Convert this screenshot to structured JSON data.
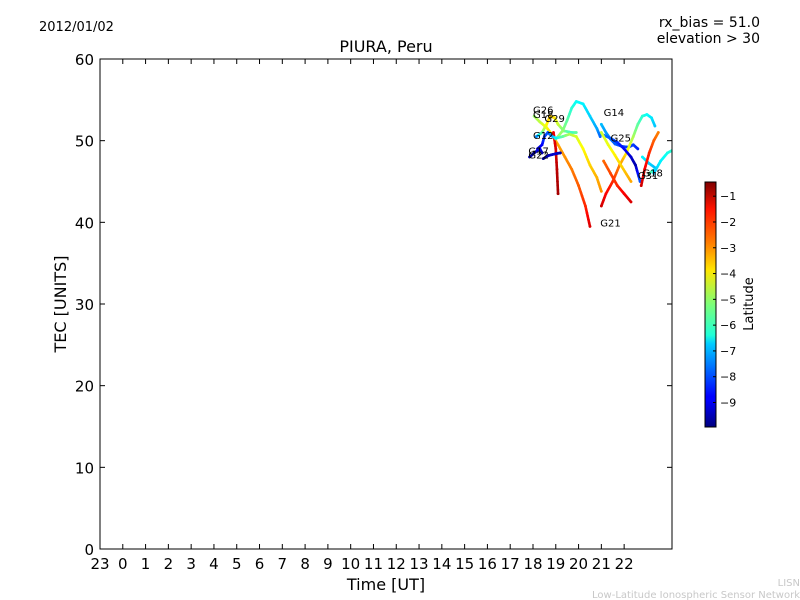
{
  "header": {
    "date": "2012/01/02",
    "bias": "rx_bias = 51.0",
    "elevation": "elevation > 30"
  },
  "footer": {
    "line1": "LISN",
    "line2": "Low-Latitude Ionospheric Sensor Network"
  },
  "colorbar": {
    "label": "Latitude",
    "ticks": [
      "−1",
      "−2",
      "−3",
      "−4",
      "−5",
      "−6",
      "−7",
      "−8",
      "−9"
    ],
    "tick_values": [
      -1,
      -2,
      -3,
      -4,
      -5,
      -6,
      -7,
      -8,
      -9
    ],
    "range": [
      -9.95,
      -0.45
    ],
    "colormap": "jet"
  },
  "chart_data": {
    "type": "scatter",
    "title": "PIURA, Peru",
    "xlabel": "Time [UT]",
    "ylabel": "TEC [UNITS]",
    "xlim": [
      -1,
      24.1
    ],
    "ylim": [
      0,
      60
    ],
    "x_ticks": [
      -1,
      0,
      1,
      2,
      3,
      4,
      5,
      6,
      7,
      8,
      9,
      10,
      11,
      12,
      13,
      14,
      15,
      16,
      17,
      18,
      19,
      20,
      21,
      22
    ],
    "x_tick_labels": [
      "23",
      "0",
      "1",
      "2",
      "3",
      "4",
      "5",
      "6",
      "7",
      "8",
      "9",
      "10",
      "11",
      "12",
      "13",
      "14",
      "15",
      "16",
      "17",
      "18",
      "19",
      "20",
      "21",
      "22"
    ],
    "y_ticks": [
      0,
      10,
      20,
      30,
      40,
      50,
      60
    ],
    "y_tick_labels": [
      "0",
      "10",
      "20",
      "30",
      "40",
      "50",
      "60"
    ],
    "grid": false,
    "color_by": "Latitude",
    "series": [
      {
        "name": "G26",
        "label_at": [
          18.0,
          53.3
        ],
        "points": [
          [
            18.05,
            53.0,
            -5.0
          ],
          [
            18.3,
            52.3,
            -4.6
          ],
          [
            18.6,
            51.6,
            -4.0
          ],
          [
            18.85,
            50.7,
            -3.6
          ],
          [
            19.1,
            49.5,
            -3.2
          ],
          [
            19.4,
            48.0,
            -3.0
          ],
          [
            19.7,
            46.5,
            -2.8
          ],
          [
            20.0,
            44.5,
            -2.5
          ],
          [
            20.3,
            42.0,
            -2.0
          ],
          [
            20.5,
            39.5,
            -1.3
          ]
        ]
      },
      {
        "name": "G18",
        "label_at": [
          18.0,
          52.8
        ],
        "points": [
          [
            18.15,
            50.5,
            -7.5
          ],
          [
            18.4,
            51.0,
            -5.5
          ],
          [
            18.6,
            52.0,
            -4.0
          ],
          [
            18.75,
            53.0,
            -3.5
          ],
          [
            18.95,
            52.8,
            -3.8
          ],
          [
            19.1,
            52.0,
            -4.5
          ],
          [
            19.35,
            51.2,
            -5.3
          ],
          [
            19.7,
            51.0,
            -5.8
          ],
          [
            19.9,
            51.0,
            -5.5
          ]
        ]
      },
      {
        "name": "G29",
        "label_at": [
          18.5,
          52.3
        ],
        "points": [
          [
            18.9,
            51.0,
            -1.5
          ],
          [
            19.0,
            49.0,
            -1.3
          ],
          [
            19.05,
            46.5,
            -1.0
          ],
          [
            19.1,
            43.5,
            -0.8
          ]
        ]
      },
      {
        "name": "G14",
        "label_at": [
          21.1,
          53.0
        ],
        "points": [
          [
            19.0,
            50.2,
            -4.8
          ],
          [
            19.3,
            51.2,
            -5.0
          ],
          [
            19.5,
            52.5,
            -5.5
          ],
          [
            19.7,
            54.0,
            -6.0
          ],
          [
            19.9,
            54.8,
            -6.3
          ],
          [
            20.2,
            54.5,
            -6.5
          ],
          [
            20.5,
            53.0,
            -6.8
          ],
          [
            20.8,
            51.5,
            -7.2
          ],
          [
            20.95,
            50.5,
            -7.8
          ]
        ]
      },
      {
        "name": "G12",
        "label_at": [
          18.0,
          50.2
        ],
        "points": [
          [
            18.2,
            49.0,
            -9.3
          ],
          [
            18.4,
            49.5,
            -8.8
          ],
          [
            18.5,
            50.5,
            -8.2
          ],
          [
            18.65,
            51.0,
            -8.0
          ],
          [
            18.8,
            50.6,
            -7.5
          ],
          [
            19.0,
            50.3,
            -6.5
          ],
          [
            19.3,
            50.5,
            -5.5
          ],
          [
            19.6,
            50.8,
            -4.8
          ],
          [
            19.9,
            50.5,
            -4.4
          ],
          [
            20.2,
            49.0,
            -4.0
          ],
          [
            20.5,
            47.0,
            -3.6
          ],
          [
            20.8,
            45.5,
            -3.3
          ],
          [
            21.0,
            43.8,
            -3.0
          ]
        ]
      },
      {
        "name": "G17",
        "label_at": [
          17.8,
          48.3
        ],
        "points": [
          [
            17.85,
            48.0,
            -9.6
          ],
          [
            18.1,
            48.6,
            -9.3
          ],
          [
            18.3,
            49.0,
            -9.0
          ],
          [
            18.4,
            48.5,
            -9.4
          ]
        ]
      },
      {
        "name": "G22",
        "label_at": [
          17.8,
          47.8
        ],
        "points": [
          [
            18.45,
            47.8,
            -9.7
          ],
          [
            18.7,
            48.2,
            -9.4
          ],
          [
            19.0,
            48.4,
            -9.2
          ],
          [
            19.2,
            48.5,
            -9.5
          ]
        ]
      },
      {
        "name": "G25",
        "label_at": [
          21.4,
          49.9
        ],
        "points": [
          [
            21.0,
            52.0,
            -7.0
          ],
          [
            21.2,
            51.0,
            -7.3
          ],
          [
            21.4,
            50.2,
            -7.6
          ],
          [
            21.6,
            49.6,
            -7.9
          ],
          [
            21.9,
            49.3,
            -8.1
          ],
          [
            22.2,
            49.2,
            -8.2
          ],
          [
            22.4,
            49.5,
            -8.2
          ],
          [
            22.6,
            49.0,
            -8.4
          ]
        ]
      },
      {
        "name": "G21",
        "label_at": [
          20.95,
          39.5
        ],
        "points": [
          [
            21.0,
            42.0,
            -1.2
          ],
          [
            21.2,
            43.5,
            -1.6
          ],
          [
            21.5,
            45.0,
            -2.0
          ],
          [
            21.8,
            47.0,
            -2.8
          ],
          [
            22.1,
            48.5,
            -3.8
          ],
          [
            22.4,
            50.5,
            -4.8
          ],
          [
            22.6,
            52.0,
            -5.5
          ],
          [
            22.8,
            53.0,
            -6.0
          ],
          [
            23.0,
            53.2,
            -6.3
          ],
          [
            23.2,
            52.8,
            -6.6
          ],
          [
            23.35,
            51.8,
            -6.9
          ]
        ]
      },
      {
        "name": "G31",
        "label_at": [
          22.6,
          45.3
        ],
        "points": [
          [
            21.0,
            50.8,
            -7.6
          ],
          [
            21.4,
            50.3,
            -7.9
          ],
          [
            21.7,
            49.8,
            -8.3
          ],
          [
            22.0,
            49.0,
            -8.7
          ],
          [
            22.3,
            48.0,
            -9.2
          ],
          [
            22.5,
            47.0,
            -9.5
          ],
          [
            22.7,
            45.0,
            -8.0
          ]
        ]
      },
      {
        "name": "G18",
        "label_at": [
          22.8,
          45.6
        ],
        "points": [
          [
            22.8,
            48.0,
            -6.5
          ],
          [
            23.1,
            47.2,
            -6.8
          ],
          [
            23.4,
            46.6,
            -7.0
          ],
          [
            23.1,
            46.0,
            -5.5
          ]
        ]
      },
      {
        "name": "",
        "label_at": null,
        "points": [
          [
            21.0,
            51.0,
            -4.5
          ],
          [
            21.3,
            49.5,
            -4.2
          ],
          [
            21.6,
            48.2,
            -3.9
          ],
          [
            21.9,
            46.8,
            -3.6
          ],
          [
            22.3,
            45.0,
            -3.2
          ]
        ]
      },
      {
        "name": "",
        "label_at": null,
        "points": [
          [
            21.1,
            47.5,
            -2.6
          ],
          [
            21.4,
            46.0,
            -2.3
          ],
          [
            21.7,
            44.5,
            -2.0
          ],
          [
            22.0,
            43.5,
            -1.6
          ],
          [
            22.3,
            42.5,
            -1.3
          ]
        ]
      },
      {
        "name": "",
        "label_at": null,
        "points": [
          [
            22.75,
            44.5,
            -1.2
          ],
          [
            22.9,
            46.5,
            -1.5
          ],
          [
            23.1,
            48.5,
            -2.0
          ],
          [
            23.3,
            50.0,
            -2.5
          ],
          [
            23.5,
            51.0,
            -2.8
          ]
        ]
      },
      {
        "name": "",
        "label_at": null,
        "points": [
          [
            23.3,
            46.0,
            -7.0
          ],
          [
            23.6,
            47.5,
            -6.5
          ],
          [
            23.9,
            48.5,
            -6.2
          ],
          [
            24.1,
            48.8,
            -6.0
          ]
        ]
      }
    ]
  }
}
